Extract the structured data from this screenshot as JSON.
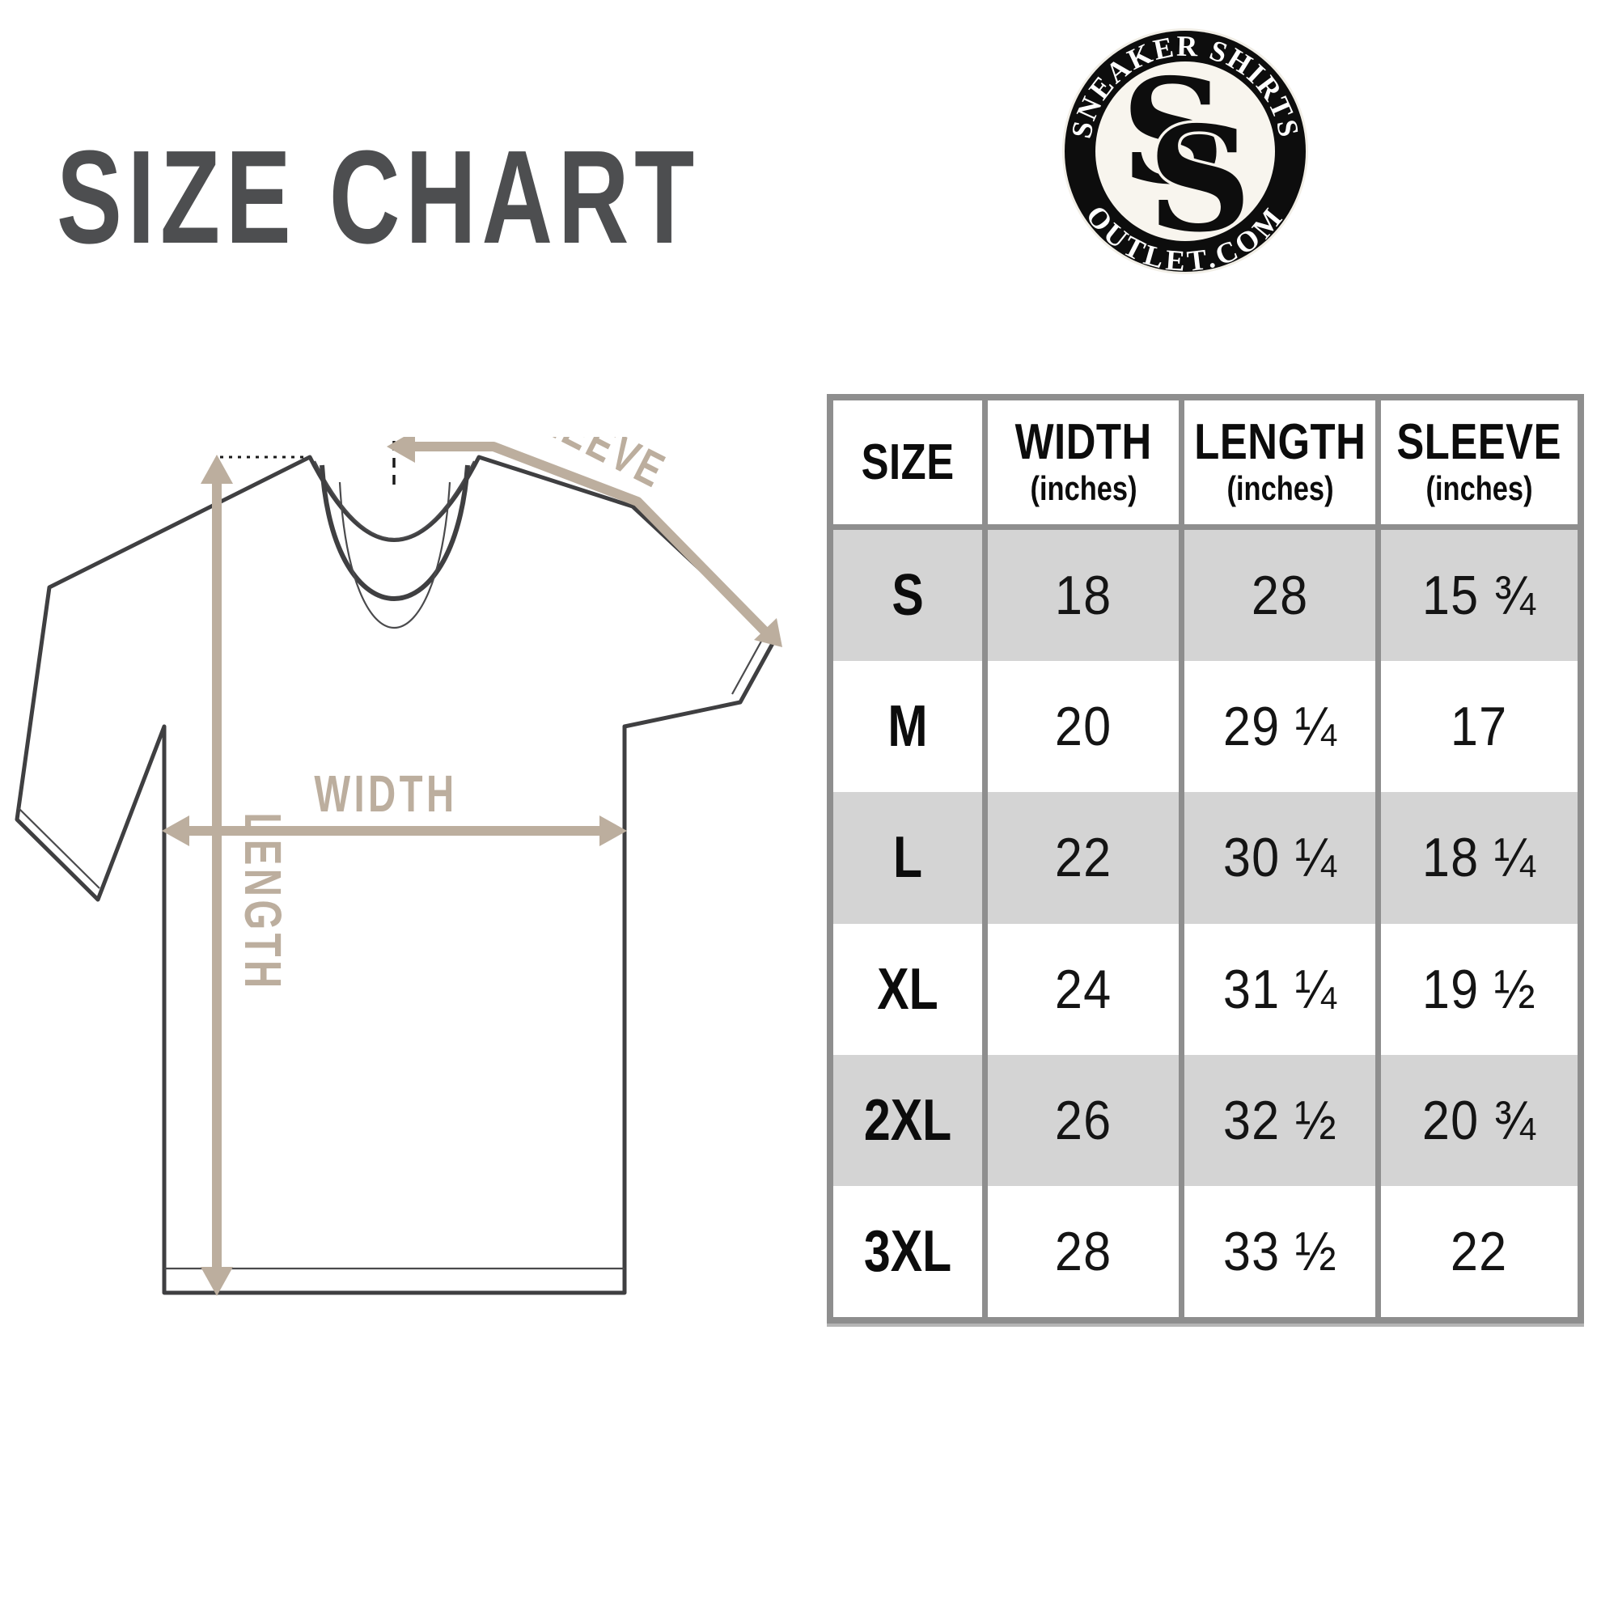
{
  "page": {
    "title": "SIZE CHART"
  },
  "logo": {
    "top_text": "SNEAKER SHIRTS",
    "bottom_text": "OUTLET.COM",
    "monogram_letter": "S",
    "ring_color": "#0d0d0d",
    "inner_color": "#f8f5ee",
    "text_color": "#ffffff"
  },
  "diagram": {
    "labels": {
      "width": "WIDTH",
      "length": "LENGTH",
      "sleeve": "SLEEVE"
    },
    "arrow_color": "#bcae9e",
    "outline_color": "#3f3f41"
  },
  "size_table": {
    "columns": [
      {
        "label": "SIZE",
        "sub": ""
      },
      {
        "label": "WIDTH",
        "sub": "(inches)"
      },
      {
        "label": "LENGTH",
        "sub": "(inches)"
      },
      {
        "label": "SLEEVE",
        "sub": "(inches)"
      }
    ],
    "rows": [
      {
        "size": "S",
        "width": "18",
        "length": "28",
        "sleeve": "15 ¾",
        "shaded": true
      },
      {
        "size": "M",
        "width": "20",
        "length": "29 ¼",
        "sleeve": "17",
        "shaded": false
      },
      {
        "size": "L",
        "width": "22",
        "length": "30 ¼",
        "sleeve": "18 ¼",
        "shaded": true
      },
      {
        "size": "XL",
        "width": "24",
        "length": "31 ¼",
        "sleeve": "19 ½",
        "shaded": false
      },
      {
        "size": "2XL",
        "width": "26",
        "length": "32 ½",
        "sleeve": "20 ¾",
        "shaded": true
      },
      {
        "size": "3XL",
        "width": "28",
        "length": "33 ½",
        "sleeve": "22",
        "shaded": false
      }
    ],
    "colors": {
      "row_shade": "#d4d4d4",
      "border": "#8e8e8e"
    }
  },
  "chart_data": {
    "type": "table",
    "title": "SIZE CHART",
    "columns": [
      "SIZE",
      "WIDTH (inches)",
      "LENGTH (inches)",
      "SLEEVE (inches)"
    ],
    "rows": [
      [
        "S",
        "18",
        "28",
        "15 ¾"
      ],
      [
        "M",
        "20",
        "29 ¼",
        "17"
      ],
      [
        "L",
        "22",
        "30 ¼",
        "18 ¼"
      ],
      [
        "XL",
        "24",
        "31 ¼",
        "19 ½"
      ],
      [
        "2XL",
        "26",
        "32 ½",
        "20 ¾"
      ],
      [
        "3XL",
        "28",
        "33 ½",
        "22"
      ]
    ]
  }
}
